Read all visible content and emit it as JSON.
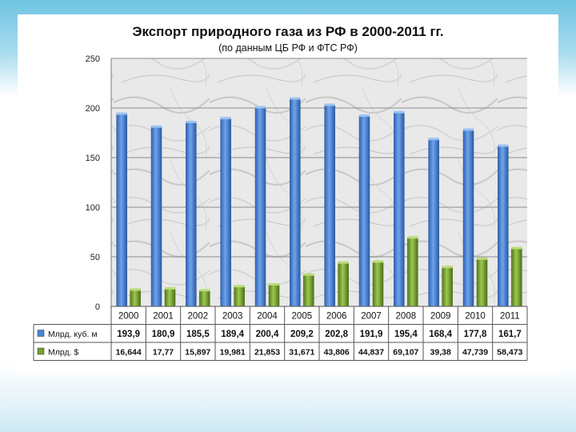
{
  "chart_data": {
    "type": "bar",
    "title": "Экспорт природного газа из РФ в 2000-2011 гг.",
    "subtitle": "(по данным ЦБ РФ и ФТС РФ)",
    "categories": [
      "2000",
      "2001",
      "2002",
      "2003",
      "2004",
      "2005",
      "2006",
      "2007",
      "2008",
      "2009",
      "2010",
      "2011"
    ],
    "ylim": [
      0,
      250
    ],
    "yticks": [
      "0",
      "50",
      "100",
      "150",
      "200",
      "250"
    ],
    "grid": true,
    "legend": "table-below",
    "series": [
      {
        "name": "Млрд. куб. м",
        "color": "#4a86d6",
        "values": [
          193.9,
          180.9,
          185.5,
          189.4,
          200.4,
          209.2,
          202.8,
          191.9,
          195.4,
          168.4,
          177.8,
          161.7
        ],
        "labels": [
          "193,9",
          "180,9",
          "185,5",
          "189,4",
          "200,4",
          "209,2",
          "202,8",
          "191,9",
          "195,4",
          "168,4",
          "177,8",
          "161,7"
        ]
      },
      {
        "name": "Млрд. $",
        "color": "#77a031",
        "values": [
          16.644,
          17.77,
          15.897,
          19.981,
          21.853,
          31.671,
          43.806,
          44.837,
          69.107,
          39.38,
          47.739,
          58.473
        ],
        "labels": [
          "16,644",
          "17,77",
          "15,897",
          "19,981",
          "21,853",
          "31,671",
          "43,806",
          "44,837",
          "69,107",
          "39,38",
          "47,739",
          "58,473"
        ]
      }
    ]
  }
}
